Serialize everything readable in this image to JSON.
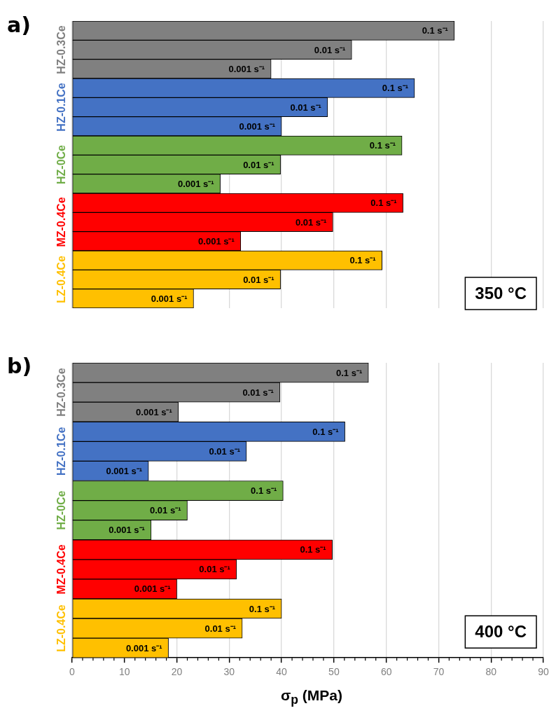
{
  "chart_data": [
    {
      "type": "bar",
      "title": "a)",
      "orientation": "horizontal",
      "categories": [
        "HZ-0.3Ce",
        "HZ-0.1Ce",
        "HZ-0Ce",
        "MZ-0.4Ce",
        "LZ-0.4Ce"
      ],
      "series": [
        {
          "name": "0.1 s⁻¹",
          "colors": [
            "#808080",
            "#4472c4",
            "#70ad47",
            "#ff0000",
            "#ffc000"
          ],
          "values": [
            73.0,
            65.4,
            63.0,
            63.2,
            59.2
          ]
        },
        {
          "name": "0.01 s⁻¹",
          "colors": [
            "#808080",
            "#4472c4",
            "#70ad47",
            "#ff0000",
            "#ffc000"
          ],
          "values": [
            53.4,
            48.8,
            39.8,
            49.8,
            39.8
          ]
        },
        {
          "name": "0.001 s⁻¹",
          "colors": [
            "#808080",
            "#4472c4",
            "#70ad47",
            "#ff0000",
            "#ffc000"
          ],
          "values": [
            38.0,
            40.0,
            28.3,
            32.2,
            23.2
          ]
        }
      ],
      "xlim": [
        0,
        90
      ],
      "xticks": [
        0,
        10,
        20,
        30,
        40,
        50,
        60,
        70,
        80,
        90
      ],
      "tick_labels": "y",
      "grid": "x",
      "legend": false,
      "annotations": [
        "350 °C"
      ]
    },
    {
      "type": "bar",
      "title": "b)",
      "orientation": "horizontal",
      "categories": [
        "HZ-0.3Ce",
        "HZ-0.1Ce",
        "HZ-0Ce",
        "MZ-0.4Ce",
        "LZ-0.4Ce"
      ],
      "series": [
        {
          "name": "0.1 s⁻¹",
          "colors": [
            "#808080",
            "#4472c4",
            "#70ad47",
            "#ff0000",
            "#ffc000"
          ],
          "values": [
            56.6,
            52.1,
            40.3,
            49.7,
            40.0
          ]
        },
        {
          "name": "0.01 s⁻¹",
          "colors": [
            "#808080",
            "#4472c4",
            "#70ad47",
            "#ff0000",
            "#ffc000"
          ],
          "values": [
            39.7,
            33.3,
            22.0,
            31.4,
            32.5
          ]
        },
        {
          "name": "0.001 s⁻¹",
          "colors": [
            "#808080",
            "#4472c4",
            "#70ad47",
            "#ff0000",
            "#ffc000"
          ],
          "values": [
            20.3,
            14.6,
            15.1,
            20.0,
            18.4
          ]
        }
      ],
      "xlim": [
        0,
        90
      ],
      "xticks": [
        0,
        10,
        20,
        30,
        40,
        50,
        60,
        70,
        80,
        90
      ],
      "xlabel": "σ$_{p}$ (MPa)",
      "grid": "x",
      "legend": false,
      "annotations": [
        "400 °C"
      ]
    }
  ]
}
